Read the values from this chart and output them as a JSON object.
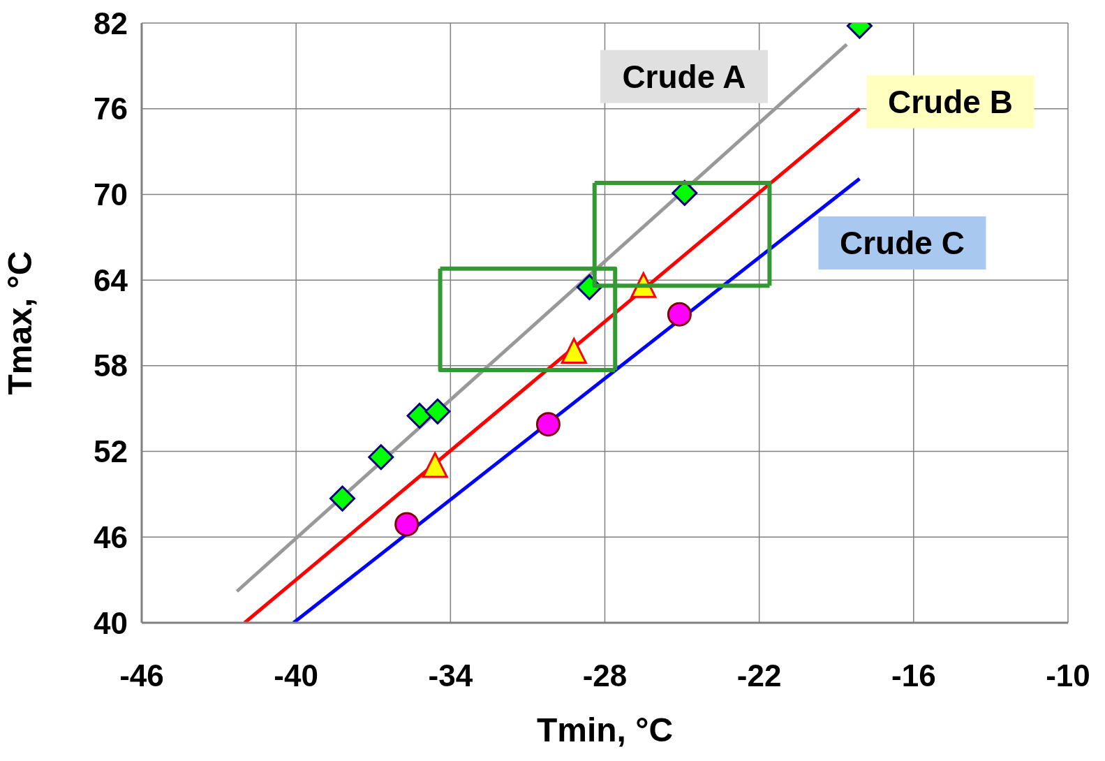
{
  "chart_data": {
    "type": "scatter",
    "xlabel": "Tmin, °C",
    "ylabel": "Tmax, °C",
    "xlim": [
      -46,
      -10
    ],
    "xticks": [
      -46,
      -40,
      -34,
      -28,
      -22,
      -16,
      -10
    ],
    "ylim": [
      40,
      82
    ],
    "yticks": [
      40,
      46,
      52,
      58,
      64,
      70,
      76,
      82
    ],
    "grid": true,
    "series": [
      {
        "type": "line",
        "name": "Crude A",
        "color": "#999999",
        "x": [
          -42.3,
          -18.6
        ],
        "values": [
          42.2,
          80.5
        ]
      },
      {
        "type": "line",
        "name": "Crude B",
        "color": "#ff0000",
        "x": [
          -42.0,
          -18.1
        ],
        "values": [
          40,
          76.0
        ]
      },
      {
        "type": "line",
        "name": "Crude C",
        "color": "#0000ff",
        "x": [
          -40.1,
          -18.1
        ],
        "values": [
          40,
          71.1
        ]
      },
      {
        "type": "line",
        "color": "#339933",
        "x": [
          -34.4,
          -27.6,
          -27.6
        ],
        "values": [
          64.8,
          64.8,
          57.7
        ]
      },
      {
        "type": "line",
        "color": "#339933",
        "x": [
          -34.4,
          -34.4,
          -27.6
        ],
        "values": [
          64.8,
          57.7,
          57.7
        ]
      },
      {
        "type": "line",
        "color": "#339933",
        "x": [
          -28.4,
          -21.6,
          -21.6
        ],
        "values": [
          70.8,
          70.8,
          63.6
        ]
      },
      {
        "type": "line",
        "color": "#339933",
        "x": [
          -28.4,
          -28.4,
          -21.6
        ],
        "values": [
          70.8,
          63.6,
          63.6
        ]
      },
      {
        "type": "scatter",
        "marker": "diamond",
        "color": "#00ff00",
        "x": [
          -38.2,
          -36.7,
          -35.2,
          -34.5,
          -28.6,
          -24.9,
          -18.1
        ],
        "values": [
          48.7,
          51.6,
          54.5,
          54.8,
          63.5,
          70.1,
          81.8
        ]
      },
      {
        "type": "scatter",
        "marker": "triangle",
        "color": "#ffff00",
        "x": [
          -34.6,
          -29.2,
          -26.5
        ],
        "values": [
          50.9,
          58.9,
          63.5
        ]
      },
      {
        "type": "scatter",
        "marker": "circle",
        "color": "#ff00ff",
        "x": [
          -35.7,
          -30.2,
          -25.1
        ],
        "values": [
          46.9,
          53.9,
          61.6
        ]
      }
    ]
  }
}
